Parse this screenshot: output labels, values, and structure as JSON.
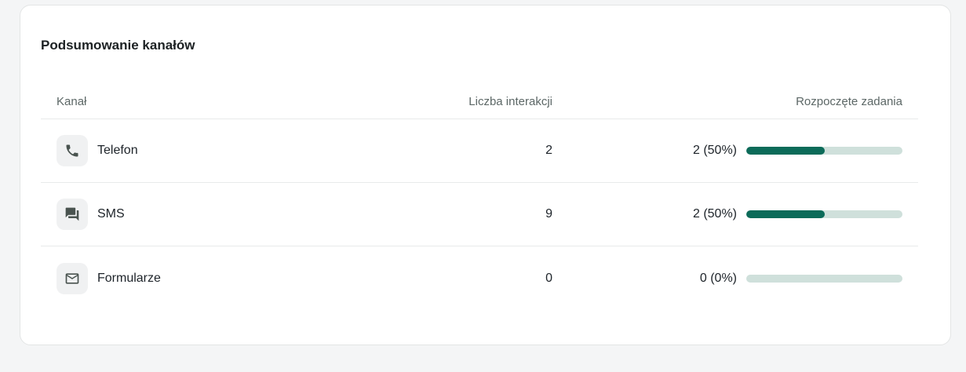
{
  "card": {
    "title": "Podsumowanie kanałów",
    "columns": {
      "channel": "Kanał",
      "interactions": "Liczba interakcji",
      "tasks": "Rozpoczęte zadania"
    },
    "rows": [
      {
        "icon": "phone-icon",
        "label": "Telefon",
        "interactions": "2",
        "tasks_label": "2 (50%)",
        "tasks_percent": 50
      },
      {
        "icon": "sms-icon",
        "label": "SMS",
        "interactions": "9",
        "tasks_label": "2 (50%)",
        "tasks_percent": 50
      },
      {
        "icon": "mail-icon",
        "label": "Formularze",
        "interactions": "0",
        "tasks_label": "0 (0%)",
        "tasks_percent": 0
      }
    ],
    "colors": {
      "progress_fill": "#0c6b59",
      "progress_track": "#cfe0db"
    }
  }
}
